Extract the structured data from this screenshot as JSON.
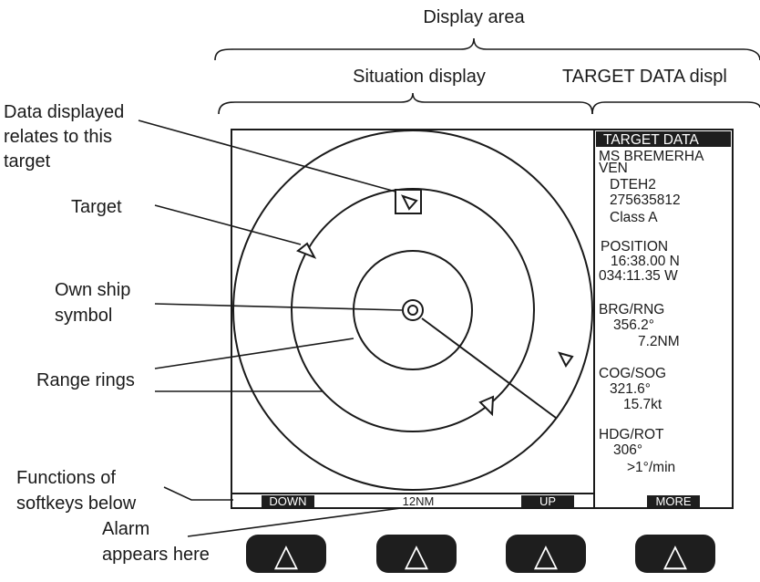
{
  "header": {
    "display_area": "Display area",
    "situation_display": "Situation display",
    "target_data_display": "TARGET DATA displ"
  },
  "callouts": {
    "data_relates_1": "Data displayed",
    "data_relates_2": "relates to this",
    "data_relates_3": "target",
    "target": "Target",
    "own_ship_1": "Own ship",
    "own_ship_2": "symbol",
    "range_rings": "Range rings",
    "softkeys_1": "Functions of",
    "softkeys_2": "softkeys below",
    "alarm_1": "Alarm",
    "alarm_2": "appears here"
  },
  "panel": {
    "title": "TARGET DATA",
    "name_1": "MS BREMERHA",
    "name_2": "VEN",
    "callsign": "DTEH2",
    "mmsi": "275635812",
    "class": "Class A",
    "position_label": "POSITION",
    "lat": "16:38.00 N",
    "lon": "034:11.35 W",
    "brg_rng_label": "BRG/RNG",
    "brg": "356.2°",
    "rng": "7.2NM",
    "cog_sog_label": "COG/SOG",
    "cog": "321.6°",
    "sog": "15.7kt",
    "hdg_rot_label": "HDG/ROT",
    "hdg": "306°",
    "rot": ">1°/min"
  },
  "softkey_bar": {
    "down": "DOWN",
    "range": "12NM",
    "up": "UP",
    "more": "MORE"
  },
  "softkeys": [
    "△",
    "△",
    "△",
    "△"
  ],
  "colors": {
    "line": "#1a1a1a",
    "panel_bg": "#ffffff",
    "key_bg": "#1e1e1e",
    "key_text": "#ffffff"
  }
}
